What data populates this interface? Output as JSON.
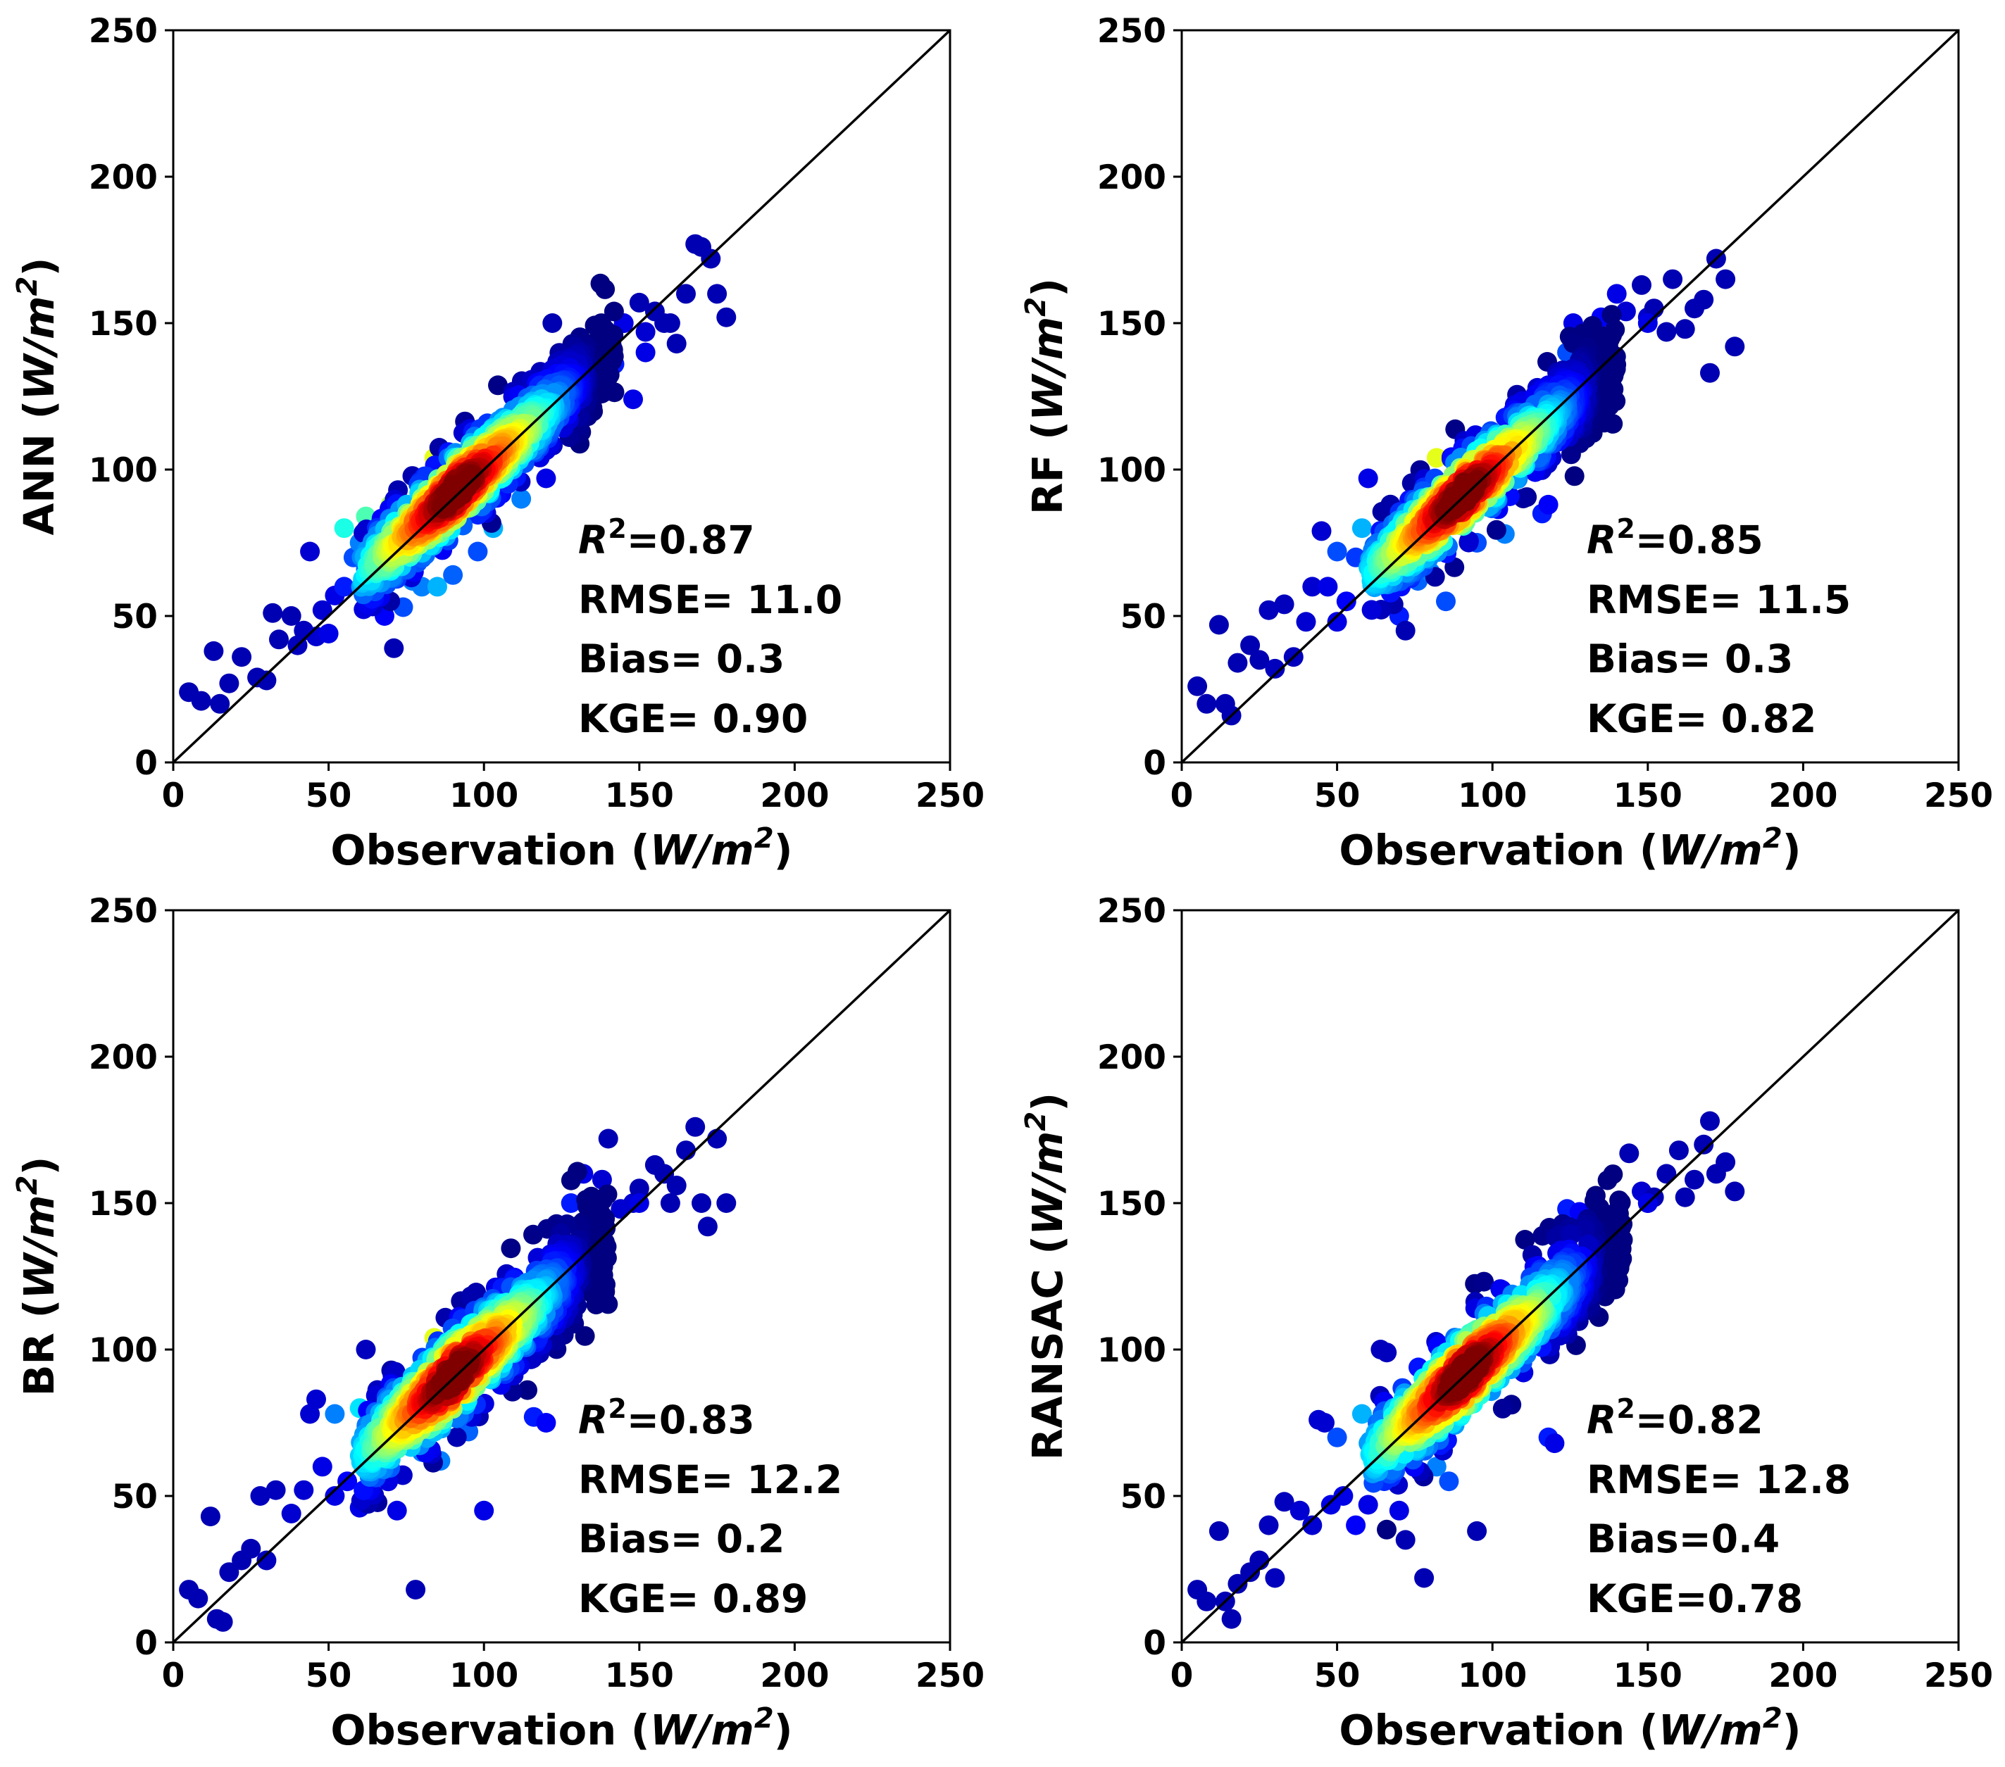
{
  "figure": {
    "panels_count": 4
  },
  "chart_data": [
    {
      "type": "scatter",
      "id": "ann",
      "title": "",
      "ylabel_prefix": "ANN",
      "xlabel_prefix": "Observation",
      "unit_text": "W/m",
      "unit_exp": "2",
      "xlim": [
        0,
        250
      ],
      "ylim": [
        0,
        250
      ],
      "xticks": [
        0,
        50,
        100,
        150,
        200,
        250
      ],
      "yticks": [
        0,
        50,
        100,
        150,
        200,
        250
      ],
      "reference_line": "1:1",
      "grid": false,
      "colormap": "jet (point density)",
      "stats": {
        "r2": "=0.87",
        "rmse": "RMSE= 11.0",
        "bias": "Bias= 0.3",
        "kge": "KGE= 0.90"
      },
      "x": [
        5,
        9,
        13,
        15,
        18,
        22,
        27,
        30,
        32,
        34,
        38,
        40,
        42,
        44,
        46,
        48,
        50,
        52,
        55,
        58,
        60,
        62,
        65,
        68,
        71,
        74,
        77,
        80,
        85,
        90,
        98,
        103,
        112,
        120,
        122,
        125,
        128,
        130,
        134,
        140,
        142,
        145,
        148,
        150,
        152,
        155,
        158,
        160,
        162,
        165,
        168,
        170,
        173,
        175,
        178,
        55,
        62,
        70,
        84,
        118,
        135,
        152
      ],
      "y": [
        24,
        21,
        38,
        20,
        27,
        36,
        29,
        28,
        51,
        42,
        50,
        40,
        45,
        72,
        43,
        52,
        44,
        57,
        60,
        70,
        75,
        66,
        65,
        50,
        39,
        53,
        62,
        60,
        60,
        64,
        72,
        80,
        90,
        97,
        150,
        138,
        140,
        140,
        142,
        145,
        136,
        150,
        124,
        157,
        147,
        154,
        150,
        150,
        143,
        160,
        177,
        176,
        172,
        160,
        152,
        80,
        84,
        88,
        104,
        117,
        128,
        140
      ],
      "density": [
        0.05,
        0.05,
        0.05,
        0.05,
        0.05,
        0.05,
        0.05,
        0.05,
        0.05,
        0.05,
        0.05,
        0.06,
        0.06,
        0.08,
        0.08,
        0.08,
        0.1,
        0.1,
        0.15,
        0.2,
        0.25,
        0.22,
        0.3,
        0.12,
        0.05,
        0.2,
        0.25,
        0.25,
        0.3,
        0.22,
        0.2,
        0.3,
        0.25,
        0.1,
        0.05,
        0.2,
        0.25,
        0.2,
        0.15,
        0.15,
        0.15,
        0.1,
        0.1,
        0.05,
        0.08,
        0.05,
        0.05,
        0.05,
        0.05,
        0.05,
        0.05,
        0.05,
        0.05,
        0.05,
        0.05,
        0.4,
        0.45,
        0.55,
        0.6,
        0.45,
        0.4,
        0.1
      ],
      "core": {
        "x_range": [
          60,
          142
        ],
        "intercept": 8,
        "slope": 0.93,
        "spread": 7
      }
    },
    {
      "type": "scatter",
      "id": "rf",
      "title": "",
      "ylabel_prefix": "RF",
      "xlabel_prefix": "Observation",
      "unit_text": "W/m",
      "unit_exp": "2",
      "xlim": [
        0,
        250
      ],
      "ylim": [
        0,
        250
      ],
      "xticks": [
        0,
        50,
        100,
        150,
        200,
        250
      ],
      "yticks": [
        0,
        50,
        100,
        150,
        200,
        250
      ],
      "reference_line": "1:1",
      "grid": false,
      "colormap": "jet (point density)",
      "stats": {
        "r2": "=0.85",
        "rmse": "RMSE= 11.5",
        "bias": "Bias= 0.3",
        "kge": "KGE= 0.82"
      },
      "x": [
        5,
        8,
        12,
        14,
        16,
        18,
        22,
        25,
        28,
        30,
        33,
        36,
        40,
        42,
        45,
        47,
        50,
        53,
        56,
        60,
        63,
        66,
        70,
        72,
        76,
        80,
        85,
        95,
        104,
        116,
        118,
        124,
        126,
        130,
        135,
        140,
        143,
        148,
        150,
        152,
        156,
        158,
        162,
        165,
        168,
        170,
        172,
        175,
        178,
        50,
        58,
        66,
        82,
        110,
        130,
        150
      ],
      "y": [
        26,
        20,
        47,
        20,
        16,
        34,
        40,
        35,
        52,
        32,
        54,
        36,
        48,
        60,
        79,
        60,
        48,
        55,
        70,
        97,
        65,
        75,
        50,
        45,
        62,
        65,
        55,
        75,
        78,
        85,
        88,
        140,
        150,
        145,
        152,
        160,
        154,
        163,
        152,
        155,
        147,
        165,
        148,
        155,
        158,
        133,
        172,
        165,
        142,
        72,
        80,
        84,
        104,
        105,
        130,
        150
      ],
      "density": [
        0.05,
        0.05,
        0.05,
        0.05,
        0.05,
        0.05,
        0.05,
        0.05,
        0.06,
        0.06,
        0.06,
        0.06,
        0.08,
        0.08,
        0.08,
        0.1,
        0.1,
        0.12,
        0.18,
        0.1,
        0.25,
        0.25,
        0.15,
        0.05,
        0.22,
        0.25,
        0.2,
        0.2,
        0.25,
        0.15,
        0.12,
        0.2,
        0.1,
        0.15,
        0.12,
        0.1,
        0.08,
        0.05,
        0.08,
        0.05,
        0.05,
        0.05,
        0.05,
        0.05,
        0.05,
        0.05,
        0.05,
        0.05,
        0.05,
        0.2,
        0.3,
        0.45,
        0.6,
        0.55,
        0.35,
        0.1
      ],
      "core": {
        "x_range": [
          60,
          140
        ],
        "intercept": 10,
        "slope": 0.9,
        "spread": 7
      }
    },
    {
      "type": "scatter",
      "id": "br",
      "title": "",
      "ylabel_prefix": "BR",
      "xlabel_prefix": "Observation",
      "unit_text": "W/m",
      "unit_exp": "2",
      "xlim": [
        0,
        250
      ],
      "ylim": [
        0,
        250
      ],
      "xticks": [
        0,
        50,
        100,
        150,
        200,
        250
      ],
      "yticks": [
        0,
        50,
        100,
        150,
        200,
        250
      ],
      "reference_line": "1:1",
      "grid": false,
      "colormap": "jet (point density)",
      "stats": {
        "r2": "=0.83",
        "rmse": "RMSE= 12.2",
        "bias": "Bias= 0.2",
        "kge": "KGE= 0.89"
      },
      "x": [
        5,
        8,
        12,
        14,
        16,
        18,
        22,
        25,
        28,
        30,
        33,
        38,
        42,
        44,
        46,
        48,
        52,
        56,
        60,
        62,
        66,
        70,
        72,
        76,
        78,
        80,
        86,
        95,
        100,
        116,
        120,
        124,
        128,
        132,
        138,
        140,
        144,
        148,
        150,
        155,
        158,
        160,
        162,
        165,
        168,
        170,
        172,
        175,
        178,
        52,
        60,
        68,
        84,
        112,
        135,
        150
      ],
      "y": [
        18,
        15,
        43,
        8,
        7,
        24,
        28,
        32,
        50,
        28,
        52,
        44,
        52,
        78,
        83,
        60,
        50,
        55,
        46,
        100,
        80,
        65,
        45,
        70,
        18,
        65,
        62,
        72,
        45,
        77,
        75,
        140,
        150,
        160,
        158,
        172,
        148,
        150,
        155,
        163,
        160,
        150,
        156,
        168,
        176,
        150,
        142,
        172,
        150,
        78,
        80,
        84,
        104,
        110,
        135,
        150
      ],
      "density": [
        0.05,
        0.05,
        0.05,
        0.05,
        0.05,
        0.05,
        0.05,
        0.05,
        0.06,
        0.06,
        0.06,
        0.08,
        0.08,
        0.08,
        0.08,
        0.1,
        0.1,
        0.12,
        0.1,
        0.06,
        0.2,
        0.25,
        0.1,
        0.2,
        0.05,
        0.25,
        0.25,
        0.22,
        0.1,
        0.15,
        0.12,
        0.2,
        0.15,
        0.1,
        0.08,
        0.05,
        0.08,
        0.08,
        0.05,
        0.05,
        0.05,
        0.05,
        0.05,
        0.05,
        0.05,
        0.05,
        0.05,
        0.05,
        0.05,
        0.25,
        0.35,
        0.5,
        0.6,
        0.5,
        0.35,
        0.1
      ],
      "core": {
        "x_range": [
          60,
          140
        ],
        "intercept": 8,
        "slope": 0.92,
        "spread": 8
      }
    },
    {
      "type": "scatter",
      "id": "ransac",
      "title": "",
      "ylabel_prefix": "RANSAC",
      "xlabel_prefix": "Observation",
      "unit_text": "W/m",
      "unit_exp": "2",
      "xlim": [
        0,
        250
      ],
      "ylim": [
        0,
        250
      ],
      "xticks": [
        0,
        50,
        100,
        150,
        200,
        250
      ],
      "yticks": [
        0,
        50,
        100,
        150,
        200,
        250
      ],
      "reference_line": "1:1",
      "grid": false,
      "colormap": "jet (point density)",
      "stats": {
        "r2": "=0.82",
        "rmse": "RMSE= 12.8",
        "bias": "Bias=0.4",
        "kge": "KGE=0.78"
      },
      "x": [
        5,
        8,
        12,
        14,
        16,
        18,
        22,
        25,
        28,
        30,
        33,
        38,
        42,
        44,
        46,
        48,
        52,
        56,
        60,
        64,
        66,
        70,
        72,
        78,
        82,
        86,
        95,
        118,
        120,
        124,
        128,
        130,
        135,
        140,
        144,
        148,
        150,
        152,
        156,
        160,
        162,
        165,
        168,
        170,
        172,
        175,
        178,
        50,
        58,
        66,
        84,
        112,
        132,
        150
      ],
      "y": [
        18,
        14,
        38,
        14,
        8,
        20,
        24,
        28,
        40,
        22,
        48,
        45,
        40,
        76,
        75,
        47,
        50,
        40,
        47,
        100,
        99,
        45,
        35,
        22,
        60,
        55,
        38,
        70,
        68,
        148,
        147,
        140,
        140,
        143,
        167,
        154,
        150,
        152,
        160,
        168,
        152,
        158,
        170,
        178,
        160,
        164,
        154,
        70,
        78,
        80,
        100,
        110,
        135,
        150
      ],
      "density": [
        0.05,
        0.05,
        0.05,
        0.05,
        0.05,
        0.05,
        0.05,
        0.05,
        0.06,
        0.06,
        0.06,
        0.08,
        0.08,
        0.08,
        0.08,
        0.1,
        0.1,
        0.12,
        0.1,
        0.06,
        0.06,
        0.1,
        0.05,
        0.05,
        0.25,
        0.2,
        0.05,
        0.15,
        0.1,
        0.15,
        0.12,
        0.15,
        0.15,
        0.1,
        0.05,
        0.08,
        0.06,
        0.05,
        0.05,
        0.05,
        0.05,
        0.05,
        0.05,
        0.05,
        0.05,
        0.05,
        0.05,
        0.2,
        0.3,
        0.45,
        0.6,
        0.5,
        0.35,
        0.1
      ],
      "core": {
        "x_range": [
          60,
          142
        ],
        "intercept": 7,
        "slope": 0.93,
        "spread": 8
      }
    }
  ]
}
